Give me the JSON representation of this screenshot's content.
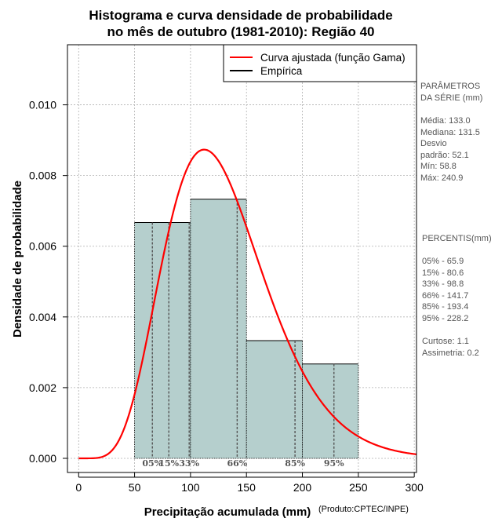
{
  "chart_data": {
    "type": "bar",
    "title_lines": [
      "Histograma e curva densidade de probabilidade",
      "no mês de outubro (1981-2010): Região 40"
    ],
    "xlabel": "Precipitação acumulada (mm)",
    "ylabel": "Densidade de probabilidade",
    "credit": "(Produto:CPTEC/INPE)",
    "xlim": [
      -10,
      302
    ],
    "ylim": [
      -0.0004,
      0.0117
    ],
    "x_ticks": [
      0,
      50,
      100,
      150,
      200,
      250,
      300
    ],
    "y_ticks": [
      0.0,
      0.002,
      0.004,
      0.006,
      0.008,
      0.01
    ],
    "y_tick_labels": [
      "0.000",
      "0.002",
      "0.004",
      "0.006",
      "0.008",
      "0.010"
    ],
    "grid": true,
    "bins": [
      {
        "from": 50,
        "to": 100,
        "density": 0.00667
      },
      {
        "from": 100,
        "to": 150,
        "density": 0.00733
      },
      {
        "from": 150,
        "to": 200,
        "density": 0.00333
      },
      {
        "from": 200,
        "to": 250,
        "density": 0.00267
      }
    ],
    "fitted_curve": {
      "name": "Curva ajustada (função Gama)",
      "distribution": "gamma",
      "shape": 7.2,
      "scale": 18.1,
      "x_range": [
        0,
        302
      ],
      "color": "#ff0000"
    },
    "empirical": {
      "name": "Empírica",
      "color": "#000000"
    },
    "bar_fill": "#b5cfcd",
    "percentiles": [
      {
        "label": "05%",
        "value": 65.9
      },
      {
        "label": "15%",
        "value": 80.6
      },
      {
        "label": "33%",
        "value": 98.8
      },
      {
        "label": "66%",
        "value": 141.7
      },
      {
        "label": "85%",
        "value": 193.4
      },
      {
        "label": "95%",
        "value": 228.2
      }
    ],
    "legend_position": "top-right"
  },
  "side_panel": {
    "params_lines": [
      "PARÂMETROS",
      " DA SÉRIE (mm)",
      "",
      "Média:  133.0",
      "Mediana:  131.5",
      "Desvio",
      "padrão:  52.1",
      "Mín:  58.8",
      "Máx:  240.9"
    ],
    "percentis_lines": [
      " PERCENTIS(mm)",
      "",
      "05% -  65.9",
      "15% -  80.6",
      "33% -  98.8",
      "66% -  141.7",
      "85% -  193.4",
      "95% -  228.2",
      "",
      "Curtose:  1.1",
      "Assimetria:  0.2"
    ]
  }
}
